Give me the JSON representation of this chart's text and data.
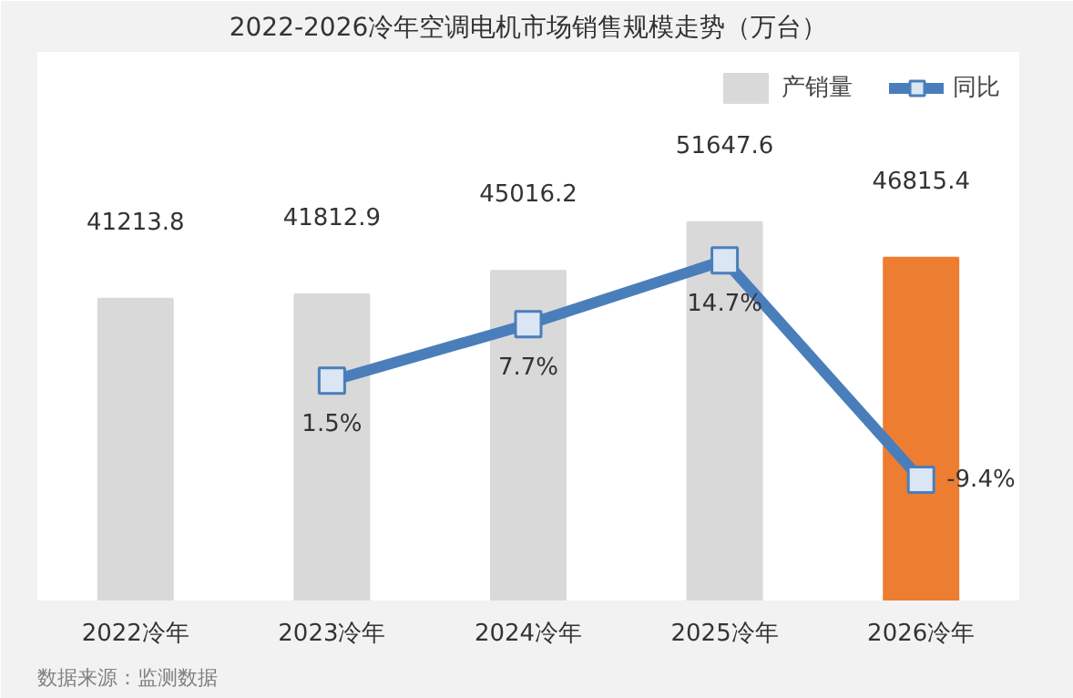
{
  "chart_data": {
    "type": "bar",
    "title": "2022-2026冷年空调电机市场销售规模走势（万台）",
    "categories": [
      "2022冷年",
      "2023冷年",
      "2024冷年",
      "2025冷年",
      "2026冷年"
    ],
    "series": [
      {
        "name": "产销量",
        "colors": [
          "#d9d9d9",
          "#d9d9d9",
          "#d9d9d9",
          "#d9d9d9",
          "#ed7d31"
        ],
        "values": [
          41213.8,
          41812.9,
          45016.2,
          51647.6,
          46815.4
        ],
        "data_labels": true
      },
      {
        "name": "同比",
        "type": "line",
        "axis": "y2",
        "color": "#4a7ebb",
        "marker": "square",
        "values": [
          null,
          1.5,
          7.7,
          14.7,
          -9.4
        ],
        "value_labels": [
          null,
          "1.5%",
          "7.7%",
          "14.7%",
          "-9.4%"
        ]
      }
    ],
    "legend": "top right",
    "grid": false,
    "tick_labels": "x",
    "annotations": [
      "数据来源：监测数据"
    ]
  }
}
